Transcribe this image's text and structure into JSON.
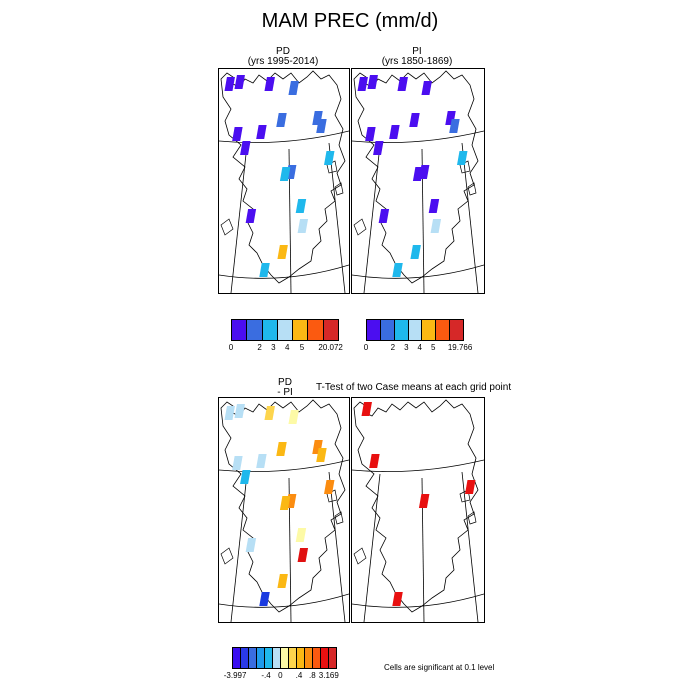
{
  "title": "MAM PREC (mm/d)",
  "panels": {
    "pd": {
      "title": "PD",
      "years": "(yrs 1995-2014)",
      "cells": [
        {
          "color": "#4b0ef0"
        },
        {
          "color": "#4b0ef0"
        },
        {
          "color": "#4b0ef0"
        },
        {
          "color": "#3a6de0"
        },
        {
          "color": "#4b0ef0"
        },
        {
          "color": "#4b0ef0"
        },
        {
          "color": "#3a6de0"
        },
        {
          "color": "#3a6de0"
        },
        {
          "color": "#4b0ef0"
        },
        {
          "color": "#3a6de0"
        },
        {
          "color": "#3a6de0"
        },
        {
          "color": "#1fb8ec"
        },
        {
          "color": "#4b0ef0"
        },
        {
          "color": "#1fb8ec"
        },
        {
          "color": "#1fb8ec"
        },
        {
          "color": "#b7dff5"
        },
        {
          "color": "#fbb814"
        },
        {
          "color": "#1fb8ec"
        }
      ]
    },
    "pi": {
      "title": "PI",
      "years": "(yrs 1850-1869)",
      "cells": [
        {
          "color": "#4b0ef0"
        },
        {
          "color": "#4b0ef0"
        },
        {
          "color": "#4b0ef0"
        },
        {
          "color": "#4b0ef0"
        },
        {
          "color": "#4b0ef0"
        },
        {
          "color": "#4b0ef0"
        },
        {
          "color": "#4b0ef0"
        },
        {
          "color": "#4b0ef0"
        },
        {
          "color": "#4b0ef0"
        },
        {
          "color": "#4b0ef0"
        },
        {
          "color": "#3a6de0"
        },
        {
          "color": "#1fb8ec"
        },
        {
          "color": "#4b0ef0"
        },
        {
          "color": "#4b0ef0"
        },
        {
          "color": "#4b0ef0"
        },
        {
          "color": "#b7dff5"
        },
        {
          "color": "#1fb8ec"
        },
        {
          "color": "#1fb8ec"
        }
      ]
    },
    "diff": {
      "title": "PD",
      "subtitle": "- PI",
      "cells": [
        {
          "color": "#b7dff5"
        },
        {
          "color": "#b7dff5"
        },
        {
          "color": "#fdd54d"
        },
        {
          "color": "#fdfaa6"
        },
        {
          "color": "#b7dff5"
        },
        {
          "color": "#b7dff5"
        },
        {
          "color": "#fbb814"
        },
        {
          "color": "#fb8c10"
        },
        {
          "color": "#1fb8ec"
        },
        {
          "color": "#fb8c10"
        },
        {
          "color": "#fbb814"
        },
        {
          "color": "#fb8c10"
        },
        {
          "color": "#b7dff5"
        },
        {
          "color": "#fbb814"
        },
        {
          "color": "#fdfaa6"
        },
        {
          "color": "#e01010"
        },
        {
          "color": "#fbb814"
        },
        {
          "color": "#1a3ae0"
        }
      ]
    },
    "ttest": {
      "title": "T-Test of two Case means at each grid point",
      "note": "Cells are significant at 0.1 level",
      "cells": [
        {
          "color": "#e81010"
        },
        {
          "color": "#e81010"
        },
        {
          "color": "#e81010"
        },
        {
          "color": "#e81010"
        },
        {
          "color": "#e81010"
        }
      ]
    }
  },
  "colorbars": {
    "pd": {
      "colors": [
        "#4b0ef0",
        "#3a6de0",
        "#1fb8ec",
        "#b7dff5",
        "#fbb814",
        "#fb5a10",
        "#d62828"
      ],
      "labels": [
        "0",
        "2",
        "3",
        "4",
        "5",
        "20.072"
      ]
    },
    "pi": {
      "colors": [
        "#4b0ef0",
        "#3a6de0",
        "#1fb8ec",
        "#b7dff5",
        "#fbb814",
        "#fb5a10",
        "#d62828"
      ],
      "labels": [
        "0",
        "2",
        "3",
        "4",
        "5",
        "19.766"
      ]
    },
    "diff": {
      "colors": [
        "#3a0ef0",
        "#2a3ae8",
        "#3a6de0",
        "#1f9aec",
        "#1fb8ec",
        "#b7dff5",
        "#fdfaa6",
        "#fdd54d",
        "#fbb814",
        "#fb8c10",
        "#fb5a10",
        "#e81010",
        "#d62828"
      ],
      "labels": [
        "-3.997",
        "-.4",
        "0",
        ".4",
        ".8",
        "3.169"
      ]
    }
  }
}
